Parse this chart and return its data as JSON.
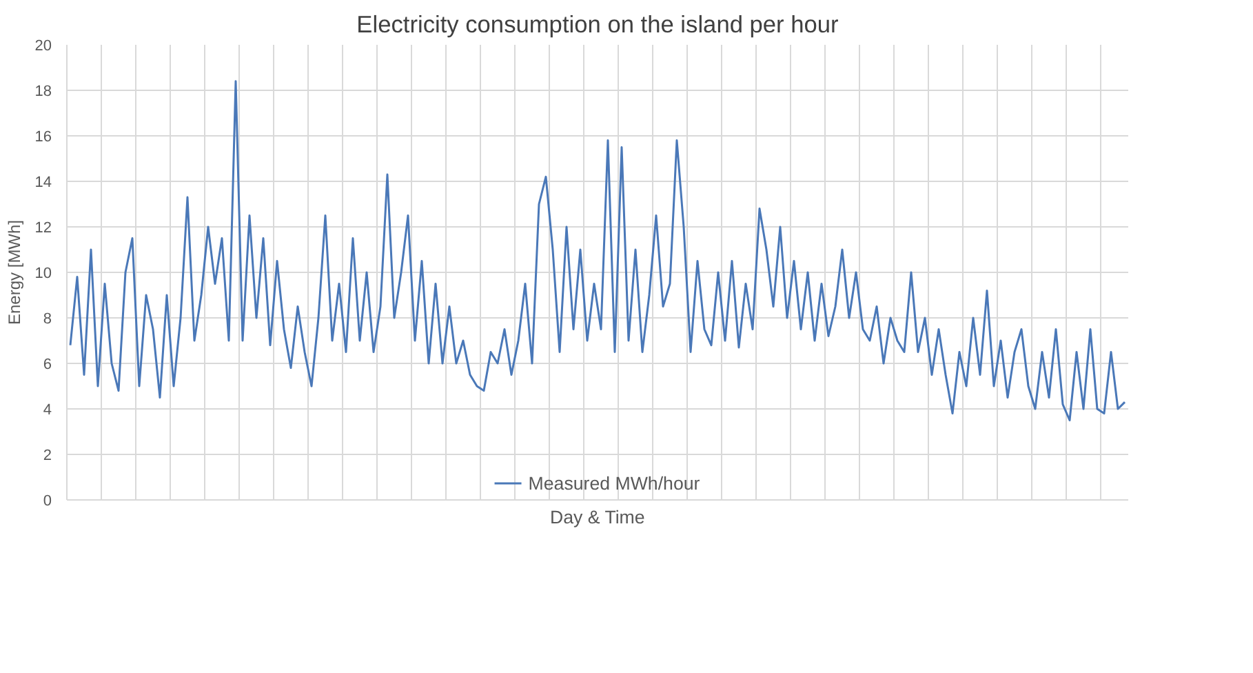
{
  "chart_data": {
    "type": "line",
    "title": "Electricity consumption on the island per hour",
    "xlabel": "Day & Time",
    "ylabel": "Energy [MWh]",
    "categories": [
      null,
      null,
      null,
      null,
      null,
      null,
      null,
      null,
      null,
      null,
      null,
      null,
      null,
      null,
      null,
      null,
      null,
      null,
      null,
      null,
      null,
      null,
      null,
      null,
      null,
      null,
      null,
      null,
      null,
      null,
      null,
      null,
      null,
      null,
      null,
      null,
      null,
      null,
      null,
      null,
      null,
      null,
      null,
      null,
      null,
      null,
      null,
      null,
      null,
      null,
      null,
      null,
      null,
      null,
      null,
      null,
      null,
      null,
      null,
      null,
      null,
      null,
      null,
      null,
      null,
      null,
      null,
      null,
      null,
      null,
      null,
      null,
      null,
      null,
      null,
      null,
      null,
      null,
      null,
      null,
      null,
      null,
      null,
      null,
      null,
      null,
      null,
      null,
      null,
      null,
      null,
      null,
      null,
      null,
      null,
      null,
      null,
      null,
      null,
      null,
      null,
      null,
      null,
      null,
      null,
      null,
      null,
      null,
      null,
      null,
      null,
      null,
      null,
      null,
      null,
      null,
      null,
      null,
      null,
      null,
      null,
      null,
      null,
      null,
      null,
      null,
      null,
      null,
      null,
      null,
      null,
      null,
      null,
      null,
      null,
      null,
      null,
      null,
      null,
      null,
      null,
      null,
      null,
      null,
      null,
      null,
      null,
      null,
      null,
      null,
      null,
      null,
      null,
      null
    ],
    "series": [
      {
        "name": "Measured MWh/hour",
        "color": "#4a78b8",
        "values": [
          6.8,
          9.8,
          5.5,
          11.0,
          5.0,
          9.5,
          6.0,
          4.8,
          10.0,
          11.5,
          5.0,
          9.0,
          7.5,
          4.5,
          9.0,
          5.0,
          8.0,
          13.3,
          7.0,
          9.0,
          12.0,
          9.5,
          11.5,
          7.0,
          18.4,
          7.0,
          12.5,
          8.0,
          11.5,
          6.8,
          10.5,
          7.5,
          5.8,
          8.5,
          6.5,
          5.0,
          8.0,
          12.5,
          7.0,
          9.5,
          6.5,
          11.5,
          7.0,
          10.0,
          6.5,
          8.5,
          14.3,
          8.0,
          10.0,
          12.5,
          7.0,
          10.5,
          6.0,
          9.5,
          6.0,
          8.5,
          6.0,
          7.0,
          5.5,
          5.0,
          4.8,
          6.5,
          6.0,
          7.5,
          5.5,
          7.0,
          9.5,
          6.0,
          13.0,
          14.2,
          11.0,
          6.5,
          12.0,
          7.5,
          11.0,
          7.0,
          9.5,
          7.5,
          15.8,
          6.5,
          15.5,
          7.0,
          11.0,
          6.5,
          9.0,
          12.5,
          8.5,
          9.5,
          15.8,
          12.0,
          6.5,
          10.5,
          7.5,
          6.8,
          10.0,
          7.0,
          10.5,
          6.7,
          9.5,
          7.5,
          12.8,
          11.0,
          8.5,
          12.0,
          8.0,
          10.5,
          7.5,
          10.0,
          7.0,
          9.5,
          7.2,
          8.5,
          11.0,
          8.0,
          10.0,
          7.5,
          7.0,
          8.5,
          6.0,
          8.0,
          7.0,
          6.5,
          10.0,
          6.5,
          8.0,
          5.5,
          7.5,
          5.5,
          3.8,
          6.5,
          5.0,
          8.0,
          5.5,
          9.2,
          5.0,
          7.0,
          4.5,
          6.5,
          7.5,
          5.0,
          4.0,
          6.5,
          4.5,
          7.5,
          4.2,
          3.5,
          6.5,
          4.0,
          7.5,
          4.0,
          3.8,
          6.5,
          4.0,
          4.3
        ]
      }
    ],
    "ylim": [
      0,
      20
    ],
    "yticks": [
      0,
      2,
      4,
      6,
      8,
      10,
      12,
      14,
      16,
      18,
      20
    ],
    "grid": true,
    "legend": "bottom",
    "marker": "none",
    "line_style": "solid"
  }
}
